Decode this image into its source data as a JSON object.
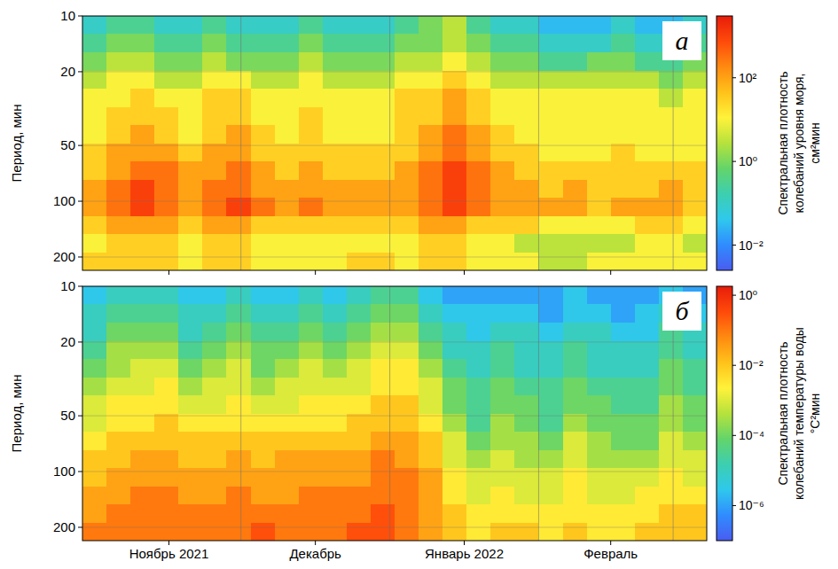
{
  "chart_data": [
    {
      "type": "heatmap",
      "panel_label": "а",
      "y_label": "Период, мин",
      "log": "y",
      "grid": true,
      "tick_labels": "y",
      "xlim": [
        -3,
        127
      ],
      "xticks": [
        15,
        45.5,
        76.5,
        107
      ],
      "month_bounds": [
        30,
        61,
        92,
        120
      ],
      "ylim": [
        236,
        10
      ],
      "yticks": [
        10,
        20,
        50,
        100,
        200
      ],
      "x_edges": [
        -3,
        2,
        7,
        12,
        17,
        22,
        27,
        32,
        37,
        42,
        47,
        52,
        57,
        62,
        67,
        72,
        77,
        82,
        87,
        92,
        97,
        102,
        107,
        112,
        117,
        122,
        127
      ],
      "period_edges": [
        10,
        12.5,
        15.7,
        19.7,
        24.7,
        31,
        38.8,
        48.7,
        61,
        76.5,
        96,
        120,
        151,
        189,
        236
      ],
      "cells": [
        [
          0.1,
          0.3,
          0.3,
          0.1,
          0.1,
          0.3,
          0.1,
          0.1,
          0.1,
          0.3,
          0.1,
          0.1,
          0.1,
          0.3,
          1,
          3,
          0.3,
          0.1,
          0.1,
          0.03,
          0.03,
          0.03,
          0.1,
          0.03,
          0.03,
          0.1
        ],
        [
          0.3,
          1,
          1,
          0.3,
          0.3,
          1,
          0.3,
          0.3,
          0.3,
          1,
          0.3,
          0.3,
          0.3,
          1,
          1,
          3,
          1,
          0.3,
          0.3,
          0.1,
          0.1,
          0.1,
          0.3,
          0.1,
          0.1,
          0.3
        ],
        [
          1,
          3,
          3,
          1,
          1,
          3,
          1,
          1,
          1,
          3,
          1,
          1,
          1,
          3,
          3,
          10,
          3,
          1,
          1,
          0.3,
          0.3,
          1,
          1,
          0.3,
          0.3,
          1
        ],
        [
          3,
          10,
          10,
          3,
          3,
          10,
          10,
          3,
          3,
          10,
          3,
          3,
          3,
          10,
          10,
          30,
          10,
          3,
          3,
          3,
          3,
          3,
          3,
          3,
          1,
          3
        ],
        [
          10,
          10,
          30,
          10,
          10,
          30,
          30,
          10,
          10,
          10,
          10,
          10,
          10,
          30,
          30,
          100,
          30,
          10,
          10,
          10,
          10,
          10,
          10,
          10,
          3,
          10
        ],
        [
          10,
          30,
          30,
          30,
          10,
          30,
          30,
          10,
          10,
          30,
          10,
          10,
          10,
          30,
          30,
          100,
          30,
          10,
          10,
          10,
          10,
          10,
          10,
          10,
          10,
          10
        ],
        [
          10,
          30,
          100,
          30,
          10,
          30,
          100,
          30,
          10,
          30,
          10,
          10,
          10,
          30,
          100,
          300,
          100,
          30,
          10,
          10,
          10,
          10,
          10,
          10,
          10,
          10
        ],
        [
          30,
          100,
          100,
          100,
          30,
          100,
          100,
          30,
          30,
          30,
          30,
          30,
          30,
          30,
          100,
          300,
          100,
          30,
          30,
          10,
          10,
          10,
          30,
          10,
          10,
          10
        ],
        [
          30,
          100,
          300,
          300,
          100,
          100,
          300,
          100,
          30,
          100,
          30,
          30,
          30,
          100,
          300,
          1000,
          300,
          100,
          30,
          30,
          30,
          30,
          30,
          30,
          30,
          30
        ],
        [
          100,
          300,
          1000,
          300,
          100,
          300,
          300,
          100,
          100,
          100,
          100,
          100,
          100,
          100,
          300,
          1000,
          300,
          100,
          100,
          30,
          100,
          30,
          30,
          30,
          100,
          30
        ],
        [
          100,
          300,
          1000,
          300,
          100,
          300,
          1000,
          300,
          100,
          300,
          100,
          100,
          100,
          100,
          300,
          1000,
          300,
          100,
          100,
          100,
          100,
          30,
          100,
          100,
          100,
          30
        ],
        [
          30,
          100,
          100,
          100,
          30,
          100,
          100,
          30,
          30,
          30,
          30,
          30,
          30,
          30,
          100,
          100,
          30,
          30,
          30,
          10,
          10,
          10,
          10,
          30,
          30,
          10
        ],
        [
          10,
          30,
          30,
          30,
          10,
          30,
          30,
          10,
          10,
          10,
          10,
          10,
          10,
          10,
          30,
          30,
          10,
          10,
          3,
          3,
          3,
          3,
          3,
          10,
          10,
          3
        ],
        [
          30,
          30,
          30,
          30,
          10,
          30,
          30,
          10,
          10,
          10,
          10,
          30,
          30,
          10,
          30,
          30,
          10,
          10,
          10,
          3,
          3,
          10,
          10,
          10,
          10,
          10
        ]
      ],
      "colorbar": {
        "lim": [
          0.0025,
          3000
        ],
        "log": true,
        "ticks": [
          {
            "value": 100,
            "label": "10²"
          },
          {
            "value": 1,
            "label": "10⁰"
          },
          {
            "value": 0.01,
            "label": "10⁻²"
          }
        ],
        "label": [
          "Спектральная плотность",
          "колебаний уровня моря,",
          "см²мин"
        ]
      }
    },
    {
      "type": "heatmap",
      "panel_label": "б",
      "y_label": "Период, мин",
      "log": "y",
      "grid": true,
      "xlim": [
        -3,
        127
      ],
      "xticks": [
        {
          "value": 15,
          "label": "Ноябрь 2021"
        },
        {
          "value": 45.5,
          "label": "Декабрь"
        },
        {
          "value": 76.5,
          "label": "Январь 2022"
        },
        {
          "value": 107,
          "label": "Февраль"
        }
      ],
      "month_bounds": [
        30,
        61,
        92,
        120
      ],
      "ylim": [
        236,
        10
      ],
      "yticks": [
        10,
        20,
        50,
        100,
        200
      ],
      "x_edges": [
        -3,
        2,
        7,
        12,
        17,
        22,
        27,
        32,
        37,
        42,
        47,
        52,
        57,
        62,
        67,
        72,
        77,
        82,
        87,
        92,
        97,
        102,
        107,
        112,
        117,
        122,
        127
      ],
      "period_edges": [
        10,
        12.5,
        15.7,
        19.7,
        24.7,
        31,
        38.8,
        48.7,
        61,
        76.5,
        96,
        120,
        151,
        189,
        236
      ],
      "cells": [
        [
          3e-06,
          1e-05,
          1e-05,
          1e-05,
          3e-06,
          3e-06,
          1e-05,
          3e-06,
          3e-06,
          1e-05,
          3e-06,
          1e-05,
          3e-05,
          3e-05,
          3e-06,
          1e-06,
          1e-06,
          1e-06,
          1e-06,
          1e-06,
          3e-06,
          1e-06,
          1e-06,
          1e-06,
          3e-06,
          1e-06
        ],
        [
          1e-05,
          3e-05,
          3e-05,
          3e-05,
          1e-05,
          1e-05,
          3e-05,
          1e-05,
          1e-05,
          3e-05,
          1e-05,
          3e-05,
          0.0001,
          0.0001,
          1e-05,
          3e-06,
          3e-06,
          3e-06,
          3e-06,
          1e-06,
          3e-06,
          3e-06,
          1e-06,
          3e-06,
          1e-05,
          3e-06
        ],
        [
          1e-05,
          0.0001,
          0.0001,
          0.0001,
          1e-05,
          3e-05,
          0.0001,
          3e-05,
          3e-05,
          0.0001,
          3e-05,
          0.0001,
          0.0003,
          0.0003,
          3e-05,
          1e-05,
          3e-06,
          1e-05,
          1e-05,
          3e-06,
          1e-05,
          1e-05,
          3e-06,
          3e-06,
          3e-05,
          1e-05
        ],
        [
          3e-05,
          0.0003,
          0.0003,
          0.0003,
          3e-05,
          0.0001,
          0.0003,
          0.0001,
          0.0001,
          0.0003,
          0.0001,
          0.0003,
          0.001,
          0.001,
          0.0001,
          1e-05,
          1e-05,
          3e-05,
          1e-05,
          1e-05,
          3e-05,
          1e-05,
          1e-05,
          1e-05,
          3e-05,
          1e-05
        ],
        [
          0.0001,
          0.0003,
          0.001,
          0.001,
          0.0001,
          0.0003,
          0.001,
          0.0001,
          0.0003,
          0.001,
          0.0003,
          0.001,
          0.003,
          0.003,
          0.0003,
          3e-05,
          1e-05,
          3e-05,
          1e-05,
          1e-05,
          3e-05,
          1e-05,
          1e-05,
          1e-05,
          0.0001,
          3e-05
        ],
        [
          0.0003,
          0.001,
          0.001,
          0.003,
          0.0003,
          0.001,
          0.001,
          0.0003,
          0.001,
          0.001,
          0.001,
          0.001,
          0.003,
          0.003,
          0.001,
          0.0001,
          3e-05,
          0.0001,
          3e-05,
          3e-05,
          0.0001,
          3e-05,
          3e-05,
          3e-05,
          0.0001,
          3e-05
        ],
        [
          0.001,
          0.003,
          0.003,
          0.003,
          0.001,
          0.001,
          0.003,
          0.001,
          0.001,
          0.003,
          0.003,
          0.003,
          0.01,
          0.01,
          0.001,
          0.0001,
          3e-05,
          0.0001,
          0.0001,
          3e-05,
          0.0001,
          0.0001,
          3e-05,
          3e-05,
          0.0003,
          0.0001
        ],
        [
          0.001,
          0.003,
          0.003,
          0.01,
          0.003,
          0.003,
          0.003,
          0.003,
          0.003,
          0.003,
          0.003,
          0.01,
          0.01,
          0.01,
          0.003,
          0.0003,
          3e-05,
          0.0003,
          0.0001,
          3e-05,
          0.0003,
          0.0001,
          0.0001,
          0.0001,
          0.0003,
          0.0001
        ],
        [
          0.003,
          0.01,
          0.01,
          0.01,
          0.01,
          0.01,
          0.01,
          0.01,
          0.01,
          0.01,
          0.01,
          0.01,
          0.03,
          0.03,
          0.01,
          0.001,
          0.0001,
          0.0003,
          0.0003,
          0.0001,
          0.001,
          0.0003,
          0.0001,
          0.0001,
          0.001,
          0.0003
        ],
        [
          0.01,
          0.01,
          0.03,
          0.03,
          0.01,
          0.01,
          0.03,
          0.01,
          0.03,
          0.03,
          0.03,
          0.03,
          0.1,
          0.03,
          0.01,
          0.001,
          0.0003,
          0.001,
          0.0003,
          0.0003,
          0.001,
          0.0003,
          0.0003,
          0.0003,
          0.001,
          0.001
        ],
        [
          0.01,
          0.03,
          0.03,
          0.03,
          0.03,
          0.03,
          0.03,
          0.03,
          0.03,
          0.03,
          0.03,
          0.03,
          0.1,
          0.1,
          0.03,
          0.003,
          0.001,
          0.001,
          0.001,
          0.001,
          0.003,
          0.001,
          0.001,
          0.001,
          0.003,
          0.001
        ],
        [
          0.03,
          0.03,
          0.1,
          0.1,
          0.03,
          0.03,
          0.1,
          0.03,
          0.03,
          0.1,
          0.1,
          0.1,
          0.1,
          0.1,
          0.03,
          0.003,
          0.001,
          0.003,
          0.001,
          0.001,
          0.003,
          0.001,
          0.001,
          0.003,
          0.003,
          0.003
        ],
        [
          0.03,
          0.1,
          0.1,
          0.1,
          0.1,
          0.1,
          0.1,
          0.1,
          0.1,
          0.1,
          0.1,
          0.1,
          0.3,
          0.1,
          0.03,
          0.01,
          0.003,
          0.003,
          0.003,
          0.003,
          0.003,
          0.003,
          0.003,
          0.003,
          0.01,
          0.01
        ],
        [
          0.1,
          0.1,
          0.1,
          0.1,
          0.1,
          0.1,
          0.1,
          0.3,
          0.1,
          0.1,
          0.1,
          0.3,
          0.3,
          0.1,
          0.03,
          0.01,
          0.003,
          0.01,
          0.01,
          0.003,
          0.01,
          0.003,
          0.003,
          0.01,
          0.01,
          0.01
        ]
      ],
      "colorbar": {
        "lim": [
          1e-07,
          1.8
        ],
        "log": true,
        "ticks": [
          {
            "value": 1,
            "label": "10⁰"
          },
          {
            "value": 0.01,
            "label": "10⁻²"
          },
          {
            "value": 0.0001,
            "label": "10⁻⁴"
          },
          {
            "value": 1e-06,
            "label": "10⁻⁶"
          }
        ],
        "label": [
          "Спектральная плотность",
          "колебаний температуры воды",
          "°C²мин"
        ]
      }
    }
  ]
}
